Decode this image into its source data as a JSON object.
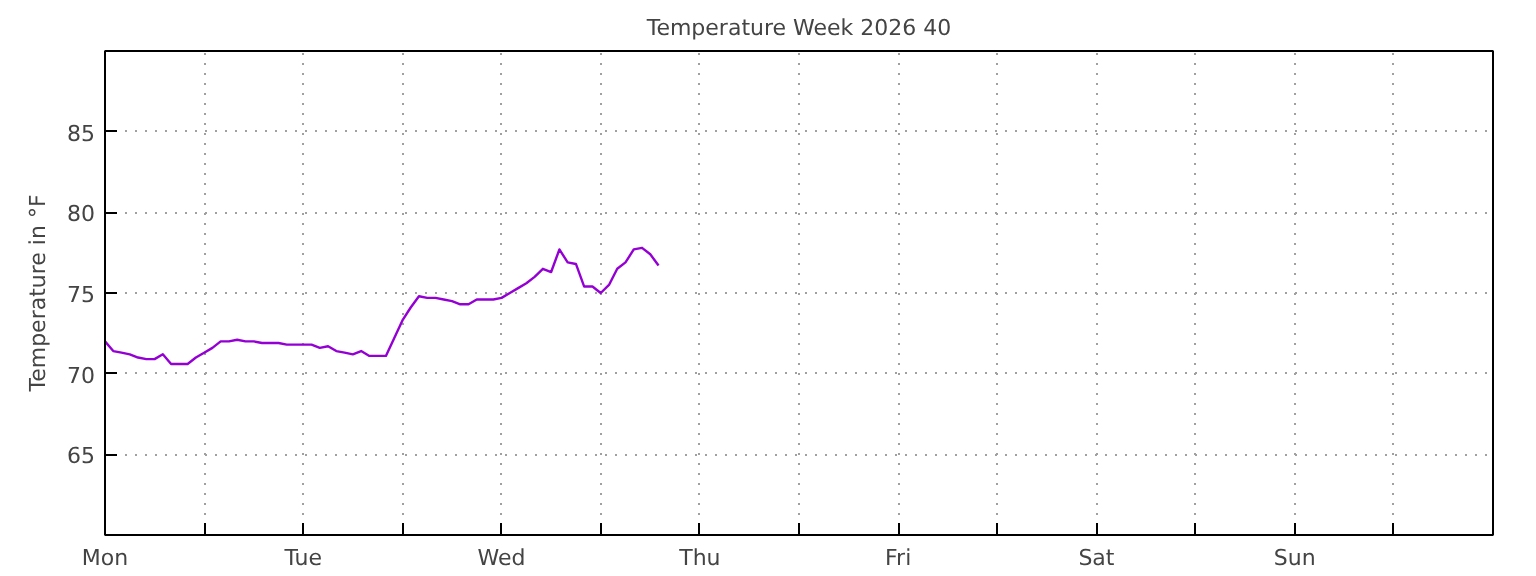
{
  "chart_data": {
    "type": "line",
    "title": "Temperature Week 2026 40",
    "ylabel": "Temperature in °F",
    "categories": [
      "Mon",
      null,
      null,
      null,
      null,
      null,
      null,
      null,
      null,
      null,
      null,
      null,
      null,
      null,
      null,
      null,
      null,
      null,
      null,
      null,
      null,
      null,
      null,
      null,
      "Tue",
      null,
      null,
      null,
      null,
      null,
      null,
      null,
      null,
      null,
      null,
      null,
      null,
      null,
      null,
      null,
      null,
      null,
      null,
      null,
      null,
      null,
      null,
      null,
      "Wed",
      null,
      null,
      null,
      null,
      null,
      null,
      null,
      null,
      null,
      null,
      null,
      null,
      null,
      null,
      null,
      null,
      null,
      null,
      null,
      null,
      null,
      null,
      null,
      "Thu",
      null,
      null,
      null,
      null,
      null,
      null,
      null,
      null,
      null,
      null,
      null,
      null,
      null,
      null,
      null,
      null,
      null,
      null,
      null,
      null,
      null,
      null,
      null,
      "Fri",
      null,
      null,
      null,
      null,
      null,
      null,
      null,
      null,
      null,
      null,
      null,
      null,
      null,
      null,
      null,
      null,
      null,
      null,
      null,
      null,
      null,
      null,
      null,
      "Sat",
      null,
      null,
      null,
      null,
      null,
      null,
      null,
      null,
      null,
      null,
      null,
      null,
      null,
      null,
      null,
      null,
      null,
      null,
      null,
      null,
      null,
      null,
      null,
      "Sun",
      null,
      null,
      null,
      null,
      null,
      null,
      null,
      null,
      null,
      null,
      null,
      null,
      null,
      null,
      null,
      null,
      null,
      null,
      null,
      null,
      null,
      null,
      null,
      null
    ],
    "ylim": [
      60,
      90
    ],
    "yticks": [
      65,
      70,
      75,
      80,
      85
    ],
    "grid": true,
    "marker": "none",
    "line_style": "solid",
    "series": [
      {
        "color": "#9400d3",
        "values": [
          72.0,
          71.4,
          71.3,
          71.2,
          71.0,
          70.9,
          70.9,
          71.2,
          70.6,
          70.6,
          70.6,
          71.0,
          71.3,
          71.6,
          72.0,
          72.0,
          72.1,
          72.0,
          72.0,
          71.9,
          71.9,
          71.9,
          71.8,
          71.8,
          71.8,
          71.8,
          71.6,
          71.7,
          71.4,
          71.3,
          71.2,
          71.4,
          71.1,
          71.1,
          71.1,
          72.2,
          73.3,
          74.1,
          74.8,
          74.7,
          74.7,
          74.6,
          74.5,
          74.3,
          74.3,
          74.6,
          74.6,
          74.6,
          74.7,
          75.0,
          75.3,
          75.6,
          76.0,
          76.5,
          76.3,
          77.7,
          76.9,
          76.8,
          75.4,
          75.4,
          75.0,
          75.5,
          76.5,
          76.9,
          77.7,
          77.8,
          77.4,
          76.7,
          null,
          null,
          null,
          null,
          null,
          null,
          null,
          null,
          null,
          null,
          null,
          null,
          null,
          null,
          null,
          null,
          null,
          null,
          null,
          null,
          null,
          null,
          null,
          null,
          null,
          null,
          null,
          null,
          null,
          null,
          null,
          null,
          null,
          null,
          null,
          null,
          null,
          null,
          null,
          null,
          null,
          null,
          null,
          null,
          null,
          null,
          null,
          null,
          null,
          null,
          null,
          null,
          null,
          null,
          null,
          null,
          null,
          null,
          null,
          null,
          null,
          null,
          null,
          null,
          null,
          null,
          null,
          null,
          null,
          null,
          null,
          null,
          null,
          null,
          null,
          null,
          null,
          null,
          null,
          null,
          null,
          null,
          null,
          null,
          null,
          null,
          null,
          null,
          null,
          null,
          null,
          null,
          null,
          null,
          null,
          null,
          null,
          null,
          null,
          null,
          null
        ]
      }
    ]
  }
}
